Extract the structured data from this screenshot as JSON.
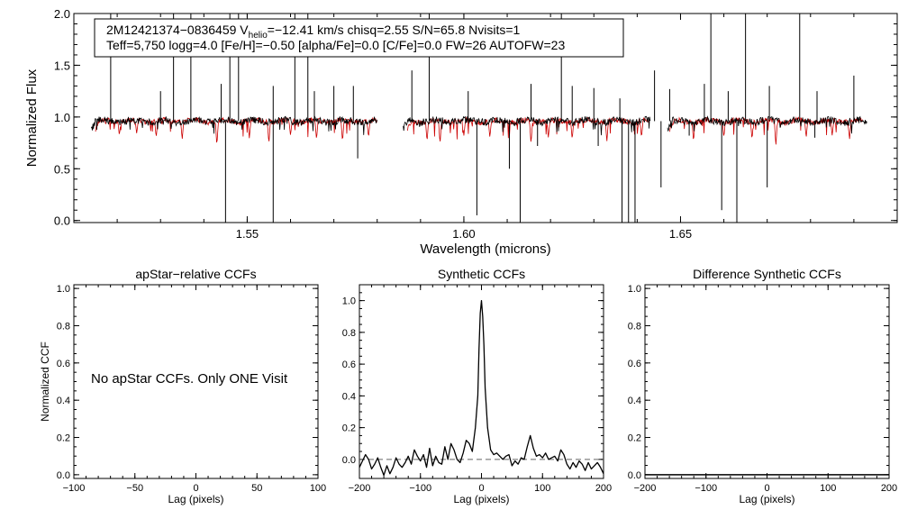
{
  "colors": {
    "observed": "#000000",
    "model": "#cc0000",
    "axis": "#000000",
    "zero_line": "#666666"
  },
  "chart_data": [
    {
      "id": "spectrum",
      "type": "line",
      "xlabel": "Wavelength (microns)",
      "ylabel": "Normalized Flux",
      "xlim": [
        1.51,
        1.7
      ],
      "ylim": [
        -0.02,
        2.0
      ],
      "xticks": [
        1.55,
        1.6,
        1.65
      ],
      "xtick_labels": [
        "1.55",
        "1.60",
        "1.65"
      ],
      "yticks": [
        0.0,
        0.5,
        1.0,
        1.5,
        2.0
      ],
      "ytick_labels": [
        "0.0",
        "0.5",
        "1.0",
        "1.5",
        "2.0"
      ],
      "info_box": {
        "line1_pre": "2M12421374−0836459  V",
        "line1_sub": "helio",
        "line1_post": "=−12.41 km/s  chisq=2.55  S/N=65.8  Nvisits=1",
        "line2": "Teff=5,750 logg=4.0 [Fe/H]=−0.50 [alpha/Fe]=0.0 [C/Fe]=0.0 FW=26 AUTOFW=23"
      },
      "series": [
        {
          "name": "observed",
          "segments": [
            [
              1.514,
              1.58
            ],
            [
              1.586,
              1.643
            ],
            [
              1.647,
              1.693
            ]
          ]
        },
        {
          "name": "model",
          "segments": [
            [
              1.515,
              1.58
            ],
            [
              1.587,
              1.6425
            ],
            [
              1.6475,
              1.692
            ]
          ]
        }
      ],
      "baseline_flux": 0.96,
      "spikes": [
        [
          1.5185,
          2.0
        ],
        [
          1.53,
          1.25
        ],
        [
          1.533,
          2.0
        ],
        [
          1.537,
          2.0
        ],
        [
          1.544,
          1.32
        ],
        [
          1.546,
          2.0
        ],
        [
          1.548,
          2.0
        ],
        [
          1.556,
          1.3
        ],
        [
          1.561,
          2.0
        ],
        [
          1.564,
          2.0
        ],
        [
          1.5655,
          1.25
        ],
        [
          1.57,
          1.3
        ],
        [
          1.5745,
          1.3
        ],
        [
          1.588,
          1.45
        ],
        [
          1.592,
          2.0
        ],
        [
          1.601,
          1.25
        ],
        [
          1.6155,
          1.32
        ],
        [
          1.6225,
          2.0
        ],
        [
          1.625,
          1.3
        ],
        [
          1.63,
          1.28
        ],
        [
          1.636,
          1.18
        ],
        [
          1.644,
          1.45
        ],
        [
          1.6475,
          1.27
        ],
        [
          1.6555,
          1.32
        ],
        [
          1.657,
          2.0
        ],
        [
          1.661,
          1.25
        ],
        [
          1.665,
          2.0
        ],
        [
          1.6705,
          1.3
        ],
        [
          1.6775,
          2.0
        ],
        [
          1.6815,
          1.25
        ],
        [
          1.69,
          1.4
        ]
      ],
      "dips": [
        [
          1.545,
          -0.02
        ],
        [
          1.556,
          -0.02
        ],
        [
          1.5755,
          0.6
        ],
        [
          1.603,
          0.05
        ],
        [
          1.6105,
          0.5
        ],
        [
          1.613,
          -0.02
        ],
        [
          1.617,
          0.72
        ],
        [
          1.631,
          0.72
        ],
        [
          1.6365,
          -0.02
        ],
        [
          1.638,
          -0.02
        ],
        [
          1.6395,
          -0.02
        ],
        [
          1.6455,
          0.32
        ],
        [
          1.652,
          0.82
        ],
        [
          1.6595,
          0.1
        ],
        [
          1.663,
          -0.02
        ],
        [
          1.67,
          0.32
        ],
        [
          1.681,
          0.8
        ]
      ],
      "model_lines": [
        [
          1.5205,
          0.82
        ],
        [
          1.5245,
          0.84
        ],
        [
          1.529,
          0.8
        ],
        [
          1.535,
          0.78
        ],
        [
          1.543,
          0.72
        ],
        [
          1.5505,
          0.8
        ],
        [
          1.555,
          0.74
        ],
        [
          1.56,
          0.82
        ],
        [
          1.566,
          0.78
        ],
        [
          1.572,
          0.76
        ],
        [
          1.578,
          0.8
        ],
        [
          1.5915,
          0.76
        ],
        [
          1.5945,
          0.74
        ],
        [
          1.6,
          0.82
        ],
        [
          1.606,
          0.8
        ],
        [
          1.6155,
          0.74
        ],
        [
          1.6195,
          0.8
        ],
        [
          1.625,
          0.78
        ],
        [
          1.633,
          0.76
        ],
        [
          1.641,
          0.8
        ],
        [
          1.653,
          0.76
        ],
        [
          1.66,
          0.8
        ],
        [
          1.6665,
          0.78
        ],
        [
          1.672,
          0.72
        ],
        [
          1.679,
          0.8
        ],
        [
          1.685,
          0.82
        ],
        [
          1.689,
          0.78
        ]
      ]
    },
    {
      "id": "apstar-ccf",
      "type": "line",
      "title": "apStar−relative CCFs",
      "xlabel": "Lag (pixels)",
      "ylabel": "Normalized CCF",
      "xlim": [
        -100,
        100
      ],
      "ylim": [
        -0.02,
        1.02
      ],
      "xticks": [
        -100,
        -50,
        0,
        50,
        100
      ],
      "xtick_labels": [
        "−100",
        "−50",
        "0",
        "50",
        "100"
      ],
      "yticks": [
        0.0,
        0.2,
        0.4,
        0.6,
        0.8,
        1.0
      ],
      "ytick_labels": [
        "0.0",
        "0.2",
        "0.4",
        "0.6",
        "0.8",
        "1.0"
      ],
      "message": "No apStar CCFs.  Only ONE Visit"
    },
    {
      "id": "synthetic-ccf",
      "type": "line",
      "title": "Synthetic CCFs",
      "xlabel": "Lag (pixels)",
      "xlim": [
        -200,
        200
      ],
      "ylim": [
        -0.12,
        1.1
      ],
      "xticks": [
        -200,
        -100,
        0,
        100,
        200
      ],
      "xtick_labels": [
        "−200",
        "−100",
        "0",
        "100",
        "200"
      ],
      "yticks": [
        0.0,
        0.2,
        0.4,
        0.6,
        0.8,
        1.0
      ],
      "ytick_labels": [
        "0.0",
        "0.2",
        "0.4",
        "0.6",
        "0.8",
        "1.0"
      ],
      "zero_line": 0.0,
      "series": [
        {
          "x": [
            -200,
            -195,
            -190,
            -185,
            -180,
            -175,
            -170,
            -165,
            -160,
            -155,
            -150,
            -145,
            -140,
            -135,
            -130,
            -125,
            -120,
            -115,
            -110,
            -105,
            -100,
            -95,
            -90,
            -85,
            -80,
            -75,
            -70,
            -65,
            -60,
            -55,
            -50,
            -45,
            -40,
            -35,
            -30,
            -25,
            -20,
            -15,
            -10,
            -6,
            -4,
            -2,
            0,
            2,
            4,
            6,
            10,
            15,
            20,
            25,
            30,
            35,
            40,
            45,
            50,
            55,
            60,
            65,
            70,
            75,
            80,
            85,
            90,
            95,
            100,
            105,
            110,
            115,
            120,
            125,
            130,
            135,
            140,
            145,
            150,
            155,
            160,
            165,
            170,
            175,
            180,
            185,
            190,
            195,
            200
          ],
          "y": [
            -0.05,
            -0.01,
            0.03,
            0.0,
            -0.06,
            -0.03,
            0.01,
            -0.05,
            -0.1,
            -0.04,
            -0.09,
            -0.05,
            0.01,
            -0.03,
            -0.05,
            -0.02,
            0.02,
            -0.03,
            0.06,
            0.02,
            -0.01,
            0.03,
            -0.05,
            0.07,
            -0.04,
            0.02,
            -0.02,
            -0.03,
            0.08,
            0.0,
            0.1,
            0.06,
            0.0,
            -0.02,
            0.04,
            0.12,
            0.1,
            0.05,
            0.2,
            0.4,
            0.7,
            0.92,
            1.0,
            0.9,
            0.72,
            0.45,
            0.2,
            0.06,
            0.03,
            0.04,
            0.02,
            0.0,
            0.02,
            0.03,
            -0.04,
            -0.01,
            -0.03,
            0.01,
            0.0,
            0.08,
            0.15,
            0.07,
            0.02,
            0.03,
            0.01,
            0.04,
            0.0,
            0.01,
            0.02,
            -0.01,
            0.06,
            0.03,
            -0.03,
            -0.06,
            -0.02,
            -0.05,
            -0.01,
            -0.03,
            -0.07,
            -0.02,
            -0.06,
            -0.04,
            -0.02,
            -0.05,
            -0.09
          ]
        }
      ]
    },
    {
      "id": "difference-ccf",
      "type": "line",
      "title": "Difference Synthetic CCFs",
      "xlabel": "Lag (pixels)",
      "xlim": [
        -200,
        200
      ],
      "ylim": [
        -0.02,
        1.02
      ],
      "xticks": [
        -200,
        -100,
        0,
        100,
        200
      ],
      "xtick_labels": [
        "−200",
        "−100",
        "0",
        "100",
        "200"
      ],
      "yticks": [
        0.0,
        0.2,
        0.4,
        0.6,
        0.8,
        1.0
      ],
      "ytick_labels": [
        "0.0",
        "0.2",
        "0.4",
        "0.6",
        "0.8",
        "1.0"
      ],
      "series": [
        {
          "x": [
            -200,
            200
          ],
          "y": [
            0.0,
            0.0
          ]
        }
      ]
    }
  ]
}
